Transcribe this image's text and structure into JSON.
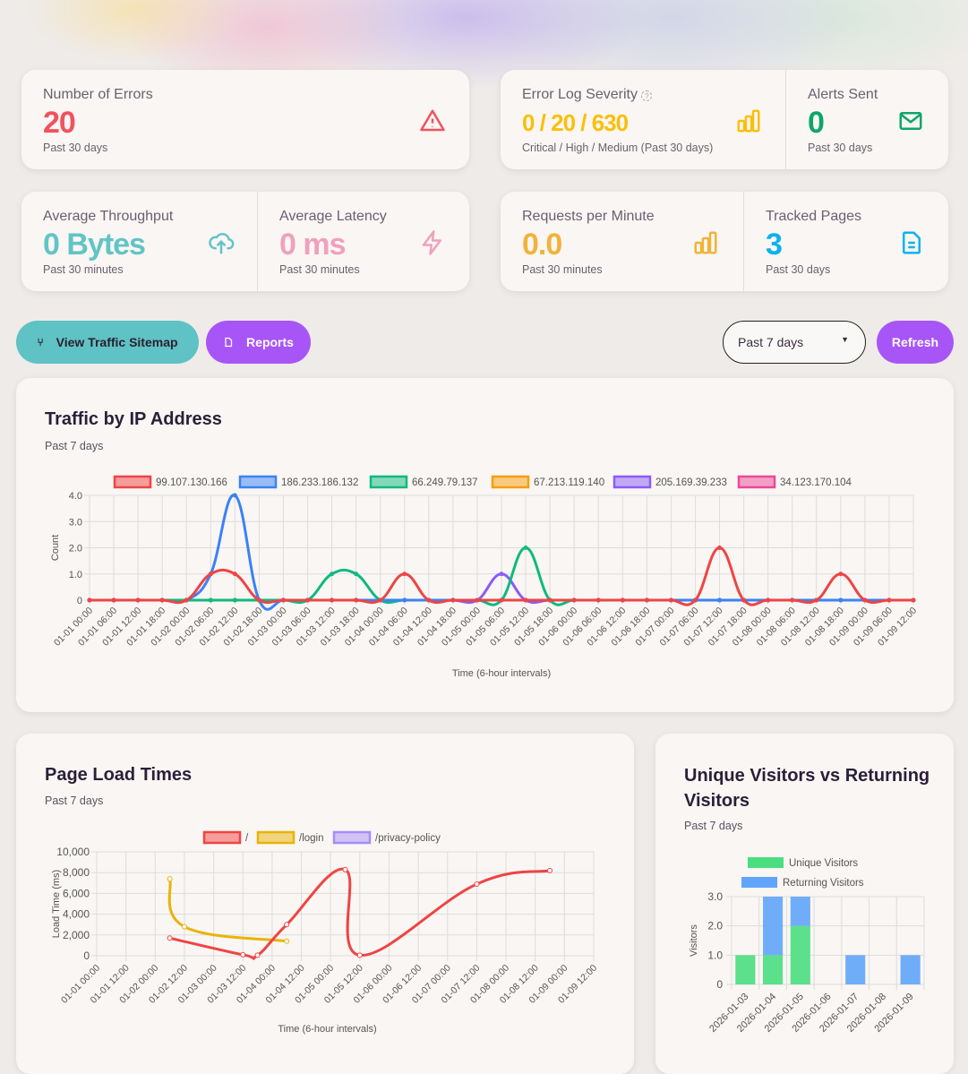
{
  "stats": {
    "errors": {
      "label": "Number of Errors",
      "value": "20",
      "sub": "Past 30 days",
      "color": "#f0525f"
    },
    "severity": {
      "label": "Error Log Severity",
      "value": "0 / 20 / 630",
      "sub": "Critical / High / Medium (Past 30 days)",
      "color": "#fbbf0a"
    },
    "alerts": {
      "label": "Alerts Sent",
      "value": "0",
      "sub": "Past 30 days",
      "color": "#0da56a"
    },
    "throughput": {
      "label": "Average Throughput",
      "value": "0 Bytes",
      "sub": "Past 30 minutes",
      "color": "#62c4c6"
    },
    "latency": {
      "label": "Average Latency",
      "value": "0 ms",
      "sub": "Past 30 minutes",
      "color": "#f0a0bd"
    },
    "rpm": {
      "label": "Requests per Minute",
      "value": "0.0",
      "sub": "Past 30 minutes",
      "color": "#f0b33a"
    },
    "pages": {
      "label": "Tracked Pages",
      "value": "3",
      "sub": "Past 30 days",
      "color": "#0bb2f0"
    }
  },
  "toolbar": {
    "sitemap": "View Traffic Sitemap",
    "reports": "Reports",
    "range": "Past 7 days",
    "refresh": "Refresh"
  },
  "traffic": {
    "title": "Traffic by IP Address",
    "subtitle": "Past 7 days"
  },
  "pageload": {
    "title": "Page Load Times",
    "subtitle": "Past 7 days"
  },
  "visitors": {
    "title": "Unique Visitors vs Returning Visitors",
    "subtitle": "Past 7 days"
  },
  "chart_data": [
    {
      "type": "line",
      "xlabel": "Time (6-hour intervals)",
      "ylabel": "Count",
      "ylim": [
        0,
        4
      ],
      "yticks": [
        "0",
        "1.0",
        "2.0",
        "3.0",
        "4.0"
      ],
      "grid": true,
      "legend": "top",
      "categories": [
        "01-01 00:00",
        "01-01 06:00",
        "01-01 12:00",
        "01-01 18:00",
        "01-02 00:00",
        "01-02 06:00",
        "01-02 12:00",
        "01-02 18:00",
        "01-03 00:00",
        "01-03 06:00",
        "01-03 12:00",
        "01-03 18:00",
        "01-04 00:00",
        "01-04 06:00",
        "01-04 12:00",
        "01-04 18:00",
        "01-05 00:00",
        "01-05 06:00",
        "01-05 12:00",
        "01-05 18:00",
        "01-06 00:00",
        "01-06 06:00",
        "01-06 12:00",
        "01-06 18:00",
        "01-07 00:00",
        "01-07 06:00",
        "01-07 12:00",
        "01-07 18:00",
        "01-08 00:00",
        "01-08 06:00",
        "01-08 12:00",
        "01-08 18:00",
        "01-09 00:00",
        "01-09 06:00",
        "01-09 12:00"
      ],
      "series": [
        {
          "name": "99.107.130.166",
          "color": "#ef4444",
          "values": [
            0,
            0,
            0,
            0,
            0,
            1,
            1,
            0,
            0,
            0,
            0,
            0,
            0,
            1,
            0,
            0,
            0,
            0,
            0,
            0,
            0,
            0,
            0,
            0,
            0,
            0,
            2,
            0,
            0,
            0,
            0,
            1,
            0,
            0,
            0
          ]
        },
        {
          "name": "186.233.186.132",
          "color": "#3b82f6",
          "values": [
            0,
            0,
            0,
            0,
            0,
            1,
            4,
            0,
            0,
            0,
            0,
            0,
            0,
            0,
            0,
            0,
            0,
            0,
            0,
            0,
            0,
            0,
            0,
            0,
            0,
            0,
            0,
            0,
            0,
            0,
            0,
            0,
            0,
            0,
            0
          ]
        },
        {
          "name": "66.249.79.137",
          "color": "#10b981",
          "values": [
            0,
            0,
            0,
            0,
            0,
            0,
            0,
            0,
            0,
            0,
            1,
            1,
            0,
            0,
            0,
            0,
            0,
            0,
            2,
            0,
            0,
            0,
            0,
            0,
            0,
            0,
            0,
            0,
            0,
            0,
            0,
            0,
            0,
            0,
            0
          ]
        },
        {
          "name": "67.213.119.140",
          "color": "#f59e0b",
          "values": [
            0,
            0,
            0,
            0,
            0,
            0,
            0,
            0,
            0,
            0,
            0,
            0,
            0,
            0,
            0,
            0,
            0,
            0,
            0,
            0,
            0,
            0,
            0,
            0,
            0,
            0,
            0,
            0,
            0,
            0,
            0,
            0,
            0,
            0,
            0
          ]
        },
        {
          "name": "205.169.39.233",
          "color": "#8b5cf6",
          "values": [
            0,
            0,
            0,
            0,
            0,
            0,
            0,
            0,
            0,
            0,
            0,
            0,
            0,
            0,
            0,
            0,
            0,
            1,
            0,
            0,
            0,
            0,
            0,
            0,
            0,
            0,
            0,
            0,
            0,
            0,
            0,
            0,
            0,
            0,
            0
          ]
        },
        {
          "name": "34.123.170.104",
          "color": "#ec4899",
          "values": [
            0,
            0,
            0,
            0,
            0,
            0,
            0,
            0,
            0,
            0,
            0,
            0,
            0,
            0,
            0,
            0,
            0,
            0,
            0,
            0,
            0,
            0,
            0,
            0,
            0,
            0,
            0,
            0,
            0,
            0,
            0,
            0,
            0,
            0,
            0
          ]
        }
      ]
    },
    {
      "type": "line",
      "xlabel": "Time (6-hour intervals)",
      "ylabel": "Load Time (ms)",
      "ylim": [
        0,
        10000
      ],
      "yticks": [
        "0",
        "2,000",
        "4,000",
        "6,000",
        "8,000",
        "10,000"
      ],
      "grid": true,
      "legend": "top",
      "xticks": [
        "01-01 00:00",
        "01-01 12:00",
        "01-02 00:00",
        "01-02 12:00",
        "01-03 00:00",
        "01-03 12:00",
        "01-04 00:00",
        "01-04 12:00",
        "01-05 00:00",
        "01-05 12:00",
        "01-06 00:00",
        "01-06 12:00",
        "01-07 00:00",
        "01-07 12:00",
        "01-08 00:00",
        "01-08 12:00",
        "01-09 00:00",
        "01-09 12:00"
      ],
      "series": [
        {
          "name": "/",
          "color": "#ef4444",
          "points": [
            [
              "01-02 06:00",
              1700
            ],
            [
              "01-03 12:00",
              100
            ],
            [
              "01-03 18:00",
              50
            ],
            [
              "01-04 06:00",
              3000
            ],
            [
              "01-05 06:00",
              8300
            ],
            [
              "01-05 12:00",
              50
            ],
            [
              "01-07 12:00",
              6900
            ],
            [
              "01-08 18:00",
              8200
            ]
          ]
        },
        {
          "name": "/login",
          "color": "#eab308",
          "points": [
            [
              "01-02 06:00",
              7400
            ],
            [
              "01-02 12:00",
              2800
            ],
            [
              "01-04 06:00",
              1400
            ]
          ]
        },
        {
          "name": "/privacy-policy",
          "color": "#a78bfa",
          "points": []
        }
      ]
    },
    {
      "type": "bar",
      "stacked": true,
      "xlabel": "",
      "ylabel": "Visitors",
      "ylim": [
        0,
        3
      ],
      "yticks": [
        "0",
        "1.0",
        "2.0",
        "3.0"
      ],
      "grid": true,
      "legend": "top",
      "categories": [
        "2026-01-03",
        "2026-01-04",
        "2026-01-05",
        "2026-01-06",
        "2026-01-07",
        "2026-01-08",
        "2026-01-09"
      ],
      "series": [
        {
          "name": "Unique Visitors",
          "color": "#4ade80",
          "values": [
            1,
            1,
            2,
            0,
            0,
            0,
            0
          ]
        },
        {
          "name": "Returning Visitors",
          "color": "#60a5fa",
          "values": [
            0,
            2,
            1,
            0,
            1,
            0,
            1
          ]
        }
      ]
    }
  ]
}
